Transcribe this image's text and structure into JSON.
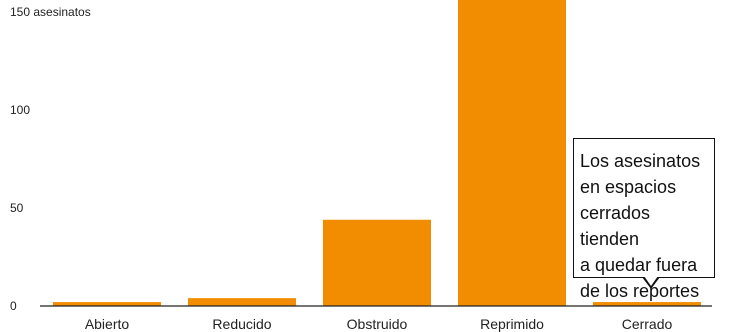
{
  "chart_data": {
    "type": "bar",
    "title": "",
    "xlabel": "",
    "ylabel": "",
    "categories": [
      "Abierto",
      "Reducido",
      "Obstruido",
      "Reprimido",
      "Cerrado"
    ],
    "values": [
      2,
      4,
      44,
      160,
      2
    ],
    "ylim": [
      0,
      157
    ],
    "yticks": [
      {
        "value": 0,
        "label": "0"
      },
      {
        "value": 50,
        "label": "50"
      },
      {
        "value": 100,
        "label": "100"
      },
      {
        "value": 150,
        "label": "150 asesinatos"
      }
    ],
    "grid": false,
    "legend": "none",
    "bar_color": "#F28C00",
    "axis_color": "#222222"
  },
  "annotation": {
    "text": "Los asesinatos\nen espacios\ncerrados tienden\na quedar fuera\nde los reportes",
    "target_category": "Cerrado"
  }
}
